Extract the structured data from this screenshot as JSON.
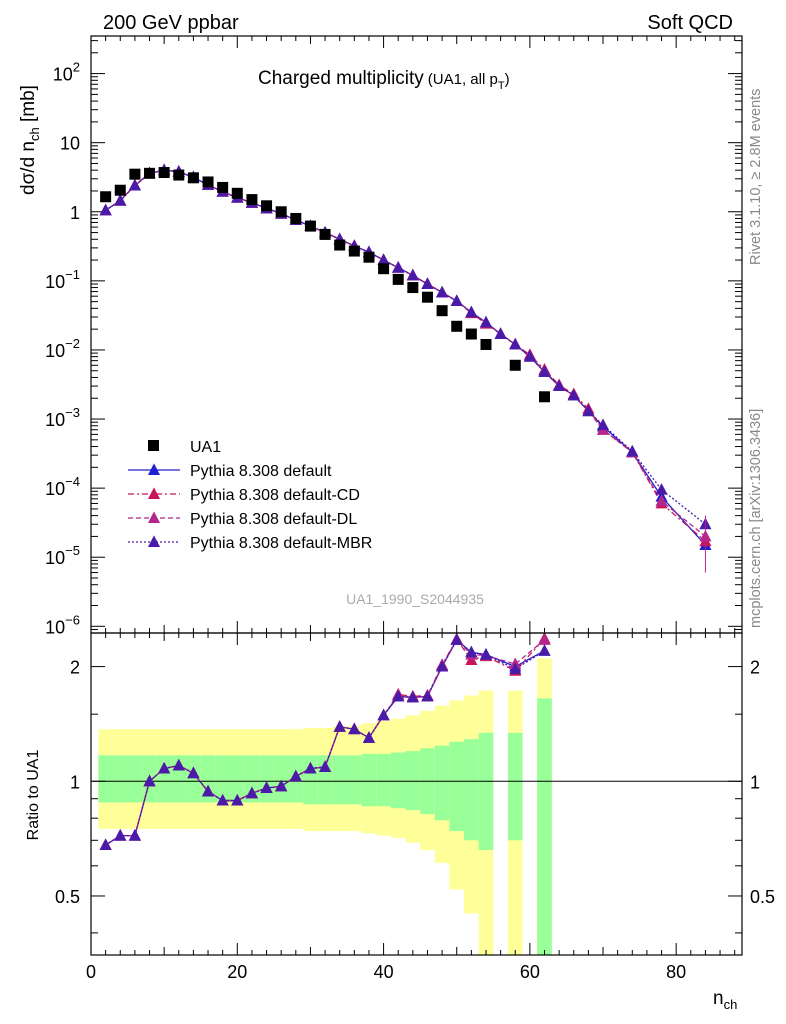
{
  "header": {
    "left": "200 GeV ppbar",
    "right": "Soft QCD"
  },
  "title": {
    "main": "Charged multiplicity",
    "sub_prefix": "(UA1, all p",
    "sub_sub": "T",
    "sub_suffix": ")"
  },
  "side_text": {
    "top": "Rivet 3.1.10, ≥ 2.8M events",
    "bottom": "mcplots.cern.ch [arXiv:1306.3436]"
  },
  "analysis_id": "UA1_1990_S2044935",
  "axes": {
    "top_ylabel": "dσ/d n",
    "top_ylabel_sub": "ch",
    "top_ylabel_unit": " [mb]",
    "bottom_ylabel": "Ratio to UA1",
    "xlabel": "n",
    "xlabel_sub": "ch",
    "x_ticks": [
      "0",
      "20",
      "40",
      "60",
      "80"
    ],
    "top_y_ticks": [
      {
        "base": "10",
        "exp": "2"
      },
      {
        "base": "10",
        "exp": ""
      },
      {
        "base": "1",
        "exp": ""
      },
      {
        "base": "10",
        "exp": "−1"
      },
      {
        "base": "10",
        "exp": "−2"
      },
      {
        "base": "10",
        "exp": "−3"
      },
      {
        "base": "10",
        "exp": "−4"
      },
      {
        "base": "10",
        "exp": "−5"
      },
      {
        "base": "10",
        "exp": "−6"
      }
    ],
    "ratio_ticks": [
      "2",
      "1",
      "0.5"
    ]
  },
  "legend": [
    {
      "label": "UA1",
      "color": "#000000",
      "marker": "square",
      "line": "none"
    },
    {
      "label": "Pythia 8.308 default",
      "color": "#2020d0",
      "marker": "triangle",
      "line": "solid"
    },
    {
      "label": "Pythia 8.308 default-CD",
      "color": "#c8145a",
      "marker": "triangle",
      "line": "dashdot"
    },
    {
      "label": "Pythia 8.308 default-DL",
      "color": "#b4288c",
      "marker": "triangle",
      "line": "dashed"
    },
    {
      "label": "Pythia 8.308 default-MBR",
      "color": "#4a1aa8",
      "marker": "triangle",
      "line": "dotted"
    }
  ],
  "chart_data": [
    {
      "type": "scatter",
      "yscale": "log",
      "xlim": [
        0,
        89
      ],
      "ylim": [
        8e-07,
        350
      ],
      "data": {
        "name": "UA1",
        "x": [
          2,
          4,
          6,
          8,
          10,
          12,
          14,
          16,
          18,
          20,
          22,
          24,
          26,
          28,
          30,
          32,
          34,
          36,
          38,
          40,
          42,
          44,
          46,
          48,
          50,
          52,
          54,
          58,
          62
        ],
        "y": [
          1.65,
          2.05,
          3.5,
          3.6,
          3.7,
          3.4,
          3.1,
          2.7,
          2.25,
          1.85,
          1.5,
          1.22,
          1.0,
          0.8,
          0.62,
          0.47,
          0.33,
          0.27,
          0.22,
          0.15,
          0.105,
          0.08,
          0.058,
          0.037,
          0.022,
          0.017,
          0.012,
          0.006,
          0.0021
        ]
      },
      "series": [
        {
          "name": "Pythia 8.308 default",
          "color": "#2020d0",
          "dash": "",
          "x": [
            2,
            4,
            6,
            8,
            10,
            12,
            14,
            16,
            18,
            20,
            22,
            24,
            26,
            28,
            30,
            32,
            34,
            36,
            38,
            40,
            42,
            44,
            46,
            48,
            50,
            52,
            54,
            56,
            58,
            60,
            62,
            64,
            66,
            68,
            70,
            74,
            78,
            84
          ],
          "y": [
            1.05,
            1.45,
            2.4,
            3.6,
            4.0,
            3.8,
            3.15,
            2.45,
            1.95,
            1.6,
            1.35,
            1.12,
            0.94,
            0.76,
            0.62,
            0.5,
            0.4,
            0.32,
            0.26,
            0.2,
            0.155,
            0.12,
            0.09,
            0.068,
            0.051,
            0.035,
            0.025,
            0.017,
            0.012,
            0.008,
            0.0048,
            0.003,
            0.0022,
            0.0013,
            0.00078,
            0.00033,
            7.5e-05,
            1.5e-05
          ]
        },
        {
          "name": "Pythia 8.308 default-CD",
          "color": "#c8145a",
          "dash": "6,3,2,3",
          "x": [
            2,
            4,
            6,
            8,
            10,
            12,
            14,
            16,
            18,
            20,
            22,
            24,
            26,
            28,
            30,
            32,
            34,
            36,
            38,
            40,
            42,
            44,
            46,
            48,
            50,
            52,
            54,
            56,
            58,
            60,
            62,
            64,
            66,
            68,
            70,
            74,
            78,
            84
          ],
          "y": [
            1.05,
            1.45,
            2.4,
            3.6,
            4.0,
            3.8,
            3.15,
            2.45,
            1.95,
            1.6,
            1.35,
            1.12,
            0.94,
            0.76,
            0.62,
            0.5,
            0.4,
            0.32,
            0.26,
            0.2,
            0.155,
            0.12,
            0.09,
            0.068,
            0.051,
            0.034,
            0.024,
            0.017,
            0.012,
            0.0085,
            0.0052,
            0.0031,
            0.0023,
            0.0014,
            0.0007,
            0.00033,
            6e-05,
            1.7e-05
          ]
        },
        {
          "name": "Pythia 8.308 default-DL",
          "color": "#b4288c",
          "dash": "5,3",
          "x": [
            2,
            4,
            6,
            8,
            10,
            12,
            14,
            16,
            18,
            20,
            22,
            24,
            26,
            28,
            30,
            32,
            34,
            36,
            38,
            40,
            42,
            44,
            46,
            48,
            50,
            52,
            54,
            56,
            58,
            60,
            62,
            64,
            66,
            68,
            70,
            74,
            78,
            84
          ],
          "y": [
            1.05,
            1.45,
            2.4,
            3.6,
            4.0,
            3.8,
            3.15,
            2.45,
            1.95,
            1.6,
            1.35,
            1.12,
            0.94,
            0.76,
            0.62,
            0.5,
            0.4,
            0.32,
            0.26,
            0.2,
            0.155,
            0.12,
            0.09,
            0.068,
            0.051,
            0.035,
            0.025,
            0.017,
            0.012,
            0.008,
            0.005,
            0.003,
            0.0022,
            0.0013,
            0.0007,
            0.00033,
            6.5e-05,
            2e-05
          ]
        },
        {
          "name": "Pythia 8.308 default-MBR",
          "color": "#4a1aa8",
          "dash": "2,2",
          "x": [
            2,
            4,
            6,
            8,
            10,
            12,
            14,
            16,
            18,
            20,
            22,
            24,
            26,
            28,
            30,
            32,
            34,
            36,
            38,
            40,
            42,
            44,
            46,
            48,
            50,
            52,
            54,
            56,
            58,
            60,
            62,
            64,
            66,
            68,
            70,
            74,
            78,
            84
          ],
          "y": [
            1.05,
            1.45,
            2.4,
            3.6,
            4.0,
            3.8,
            3.15,
            2.45,
            1.95,
            1.6,
            1.35,
            1.12,
            0.94,
            0.76,
            0.62,
            0.5,
            0.4,
            0.32,
            0.26,
            0.2,
            0.155,
            0.12,
            0.09,
            0.068,
            0.051,
            0.035,
            0.025,
            0.017,
            0.012,
            0.008,
            0.0048,
            0.003,
            0.0022,
            0.0013,
            0.00082,
            0.00034,
            9.5e-05,
            3e-05
          ]
        }
      ]
    },
    {
      "type": "line",
      "yscale": "log",
      "xlim": [
        0,
        89
      ],
      "ylim": [
        0.35,
        2.45
      ],
      "ylabel": "Ratio to UA1",
      "bands": [
        {
          "x0": 1,
          "x1": 3,
          "g": [
            0.88,
            1.17
          ],
          "y": [
            0.75,
            1.37
          ]
        },
        {
          "x0": 3,
          "x1": 5,
          "g": [
            0.88,
            1.17
          ],
          "y": [
            0.75,
            1.37
          ]
        },
        {
          "x0": 5,
          "x1": 7,
          "g": [
            0.88,
            1.17
          ],
          "y": [
            0.75,
            1.37
          ]
        },
        {
          "x0": 7,
          "x1": 9,
          "g": [
            0.88,
            1.17
          ],
          "y": [
            0.75,
            1.37
          ]
        },
        {
          "x0": 9,
          "x1": 11,
          "g": [
            0.88,
            1.17
          ],
          "y": [
            0.75,
            1.37
          ]
        },
        {
          "x0": 11,
          "x1": 13,
          "g": [
            0.88,
            1.17
          ],
          "y": [
            0.75,
            1.37
          ]
        },
        {
          "x0": 13,
          "x1": 15,
          "g": [
            0.88,
            1.17
          ],
          "y": [
            0.75,
            1.37
          ]
        },
        {
          "x0": 15,
          "x1": 17,
          "g": [
            0.88,
            1.17
          ],
          "y": [
            0.75,
            1.37
          ]
        },
        {
          "x0": 17,
          "x1": 19,
          "g": [
            0.88,
            1.17
          ],
          "y": [
            0.75,
            1.37
          ]
        },
        {
          "x0": 19,
          "x1": 21,
          "g": [
            0.88,
            1.17
          ],
          "y": [
            0.75,
            1.37
          ]
        },
        {
          "x0": 21,
          "x1": 23,
          "g": [
            0.88,
            1.17
          ],
          "y": [
            0.75,
            1.37
          ]
        },
        {
          "x0": 23,
          "x1": 25,
          "g": [
            0.88,
            1.17
          ],
          "y": [
            0.75,
            1.37
          ]
        },
        {
          "x0": 25,
          "x1": 27,
          "g": [
            0.88,
            1.17
          ],
          "y": [
            0.75,
            1.37
          ]
        },
        {
          "x0": 27,
          "x1": 29,
          "g": [
            0.88,
            1.17
          ],
          "y": [
            0.75,
            1.37
          ]
        },
        {
          "x0": 29,
          "x1": 31,
          "g": [
            0.87,
            1.17
          ],
          "y": [
            0.74,
            1.38
          ]
        },
        {
          "x0": 31,
          "x1": 33,
          "g": [
            0.87,
            1.17
          ],
          "y": [
            0.74,
            1.38
          ]
        },
        {
          "x0": 33,
          "x1": 35,
          "g": [
            0.87,
            1.17
          ],
          "y": [
            0.74,
            1.39
          ]
        },
        {
          "x0": 35,
          "x1": 37,
          "g": [
            0.87,
            1.17
          ],
          "y": [
            0.74,
            1.4
          ]
        },
        {
          "x0": 37,
          "x1": 39,
          "g": [
            0.86,
            1.18
          ],
          "y": [
            0.73,
            1.42
          ]
        },
        {
          "x0": 39,
          "x1": 41,
          "g": [
            0.86,
            1.18
          ],
          "y": [
            0.72,
            1.44
          ]
        },
        {
          "x0": 41,
          "x1": 43,
          "g": [
            0.85,
            1.19
          ],
          "y": [
            0.71,
            1.46
          ]
        },
        {
          "x0": 43,
          "x1": 45,
          "g": [
            0.84,
            1.2
          ],
          "y": [
            0.69,
            1.49
          ]
        },
        {
          "x0": 45,
          "x1": 47,
          "g": [
            0.82,
            1.22
          ],
          "y": [
            0.66,
            1.53
          ]
        },
        {
          "x0": 47,
          "x1": 49,
          "g": [
            0.79,
            1.24
          ],
          "y": [
            0.61,
            1.58
          ]
        },
        {
          "x0": 49,
          "x1": 51,
          "g": [
            0.74,
            1.27
          ],
          "y": [
            0.52,
            1.63
          ]
        },
        {
          "x0": 51,
          "x1": 53,
          "g": [
            0.7,
            1.29
          ],
          "y": [
            0.45,
            1.68
          ]
        },
        {
          "x0": 53,
          "x1": 55,
          "g": [
            0.66,
            1.34
          ],
          "y": [
            0.35,
            1.73
          ]
        },
        {
          "x0": 57,
          "x1": 59,
          "g": [
            0.7,
            1.34
          ],
          "y": [
            0.35,
            1.73
          ]
        },
        {
          "x0": 61,
          "x1": 63,
          "g": [
            0.35,
            1.65
          ],
          "y": [
            0.35,
            2.1
          ]
        }
      ],
      "series": [
        {
          "name": "Pythia 8.308 default",
          "color": "#2020d0",
          "dash": "",
          "x": [
            2,
            4,
            6,
            8,
            10,
            12,
            14,
            16,
            18,
            20,
            22,
            24,
            26,
            28,
            30,
            32,
            34,
            36,
            38,
            40,
            42,
            44,
            46,
            48,
            50,
            52,
            54,
            58,
            62
          ],
          "y": [
            0.68,
            0.72,
            0.72,
            1.0,
            1.08,
            1.1,
            1.05,
            0.94,
            0.89,
            0.89,
            0.93,
            0.96,
            0.97,
            1.03,
            1.08,
            1.09,
            1.39,
            1.37,
            1.3,
            1.49,
            1.67,
            1.66,
            1.67,
            2.0,
            2.35,
            2.18,
            2.15,
            2.0,
            2.2
          ]
        },
        {
          "name": "Pythia 8.308 default-CD",
          "color": "#c8145a",
          "dash": "6,3,2,3",
          "x": [
            2,
            4,
            6,
            8,
            10,
            12,
            14,
            16,
            18,
            20,
            22,
            24,
            26,
            28,
            30,
            32,
            34,
            36,
            38,
            40,
            42,
            44,
            46,
            48,
            50,
            52,
            54,
            58,
            62
          ],
          "y": [
            0.68,
            0.72,
            0.72,
            1.0,
            1.08,
            1.1,
            1.05,
            0.94,
            0.89,
            0.89,
            0.93,
            0.96,
            0.97,
            1.03,
            1.08,
            1.09,
            1.39,
            1.37,
            1.3,
            1.49,
            1.69,
            1.67,
            1.68,
            2.02,
            2.36,
            2.08,
            2.13,
            1.95,
            2.37
          ]
        },
        {
          "name": "Pythia 8.308 default-DL",
          "color": "#b4288c",
          "dash": "5,3",
          "x": [
            2,
            4,
            6,
            8,
            10,
            12,
            14,
            16,
            18,
            20,
            22,
            24,
            26,
            28,
            30,
            32,
            34,
            36,
            38,
            40,
            42,
            44,
            46,
            48,
            50,
            52,
            54,
            58,
            62
          ],
          "y": [
            0.68,
            0.72,
            0.72,
            1.0,
            1.08,
            1.1,
            1.05,
            0.94,
            0.89,
            0.89,
            0.93,
            0.96,
            0.97,
            1.03,
            1.08,
            1.09,
            1.39,
            1.37,
            1.3,
            1.49,
            1.68,
            1.66,
            1.67,
            2.01,
            2.35,
            2.15,
            2.14,
            2.03,
            2.35
          ]
        },
        {
          "name": "Pythia 8.308 default-MBR",
          "color": "#4a1aa8",
          "dash": "2,2",
          "x": [
            2,
            4,
            6,
            8,
            10,
            12,
            14,
            16,
            18,
            20,
            22,
            24,
            26,
            28,
            30,
            32,
            34,
            36,
            38,
            40,
            42,
            44,
            46,
            48,
            50,
            52,
            54,
            58,
            62
          ],
          "y": [
            0.68,
            0.72,
            0.72,
            1.0,
            1.08,
            1.1,
            1.05,
            0.94,
            0.89,
            0.89,
            0.93,
            0.96,
            0.97,
            1.03,
            1.08,
            1.09,
            1.39,
            1.37,
            1.3,
            1.49,
            1.67,
            1.66,
            1.67,
            2.0,
            2.35,
            2.18,
            2.15,
            1.97,
            2.2
          ]
        }
      ]
    }
  ]
}
